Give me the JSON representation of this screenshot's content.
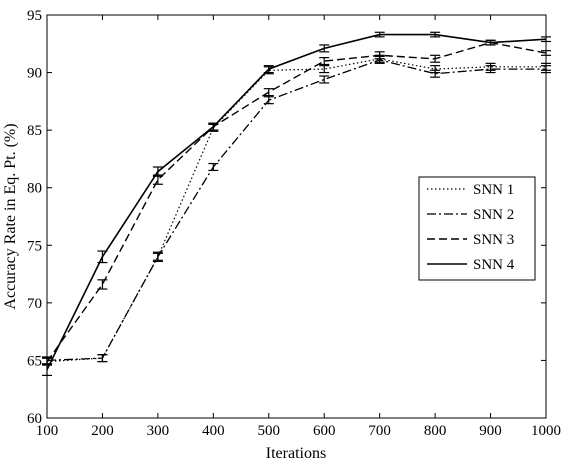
{
  "chart_data": {
    "type": "line",
    "xlabel": "Iterations",
    "ylabel": "Accuracy Rate in Eq. Pt. (%)",
    "xlim": [
      100,
      1000
    ],
    "ylim": [
      60,
      95
    ],
    "xticks": [
      100,
      200,
      300,
      400,
      500,
      600,
      700,
      800,
      900,
      1000
    ],
    "yticks": [
      60,
      65,
      70,
      75,
      80,
      85,
      90,
      95
    ],
    "grid": false,
    "legend_position": "center-right",
    "x": [
      100,
      200,
      300,
      400,
      500,
      600,
      700,
      800,
      900,
      1000
    ],
    "series": [
      {
        "name": "SNN 1",
        "style": "dotted",
        "values": [
          64.9,
          65.2,
          74.0,
          85.2,
          90.2,
          90.3,
          91.2,
          90.3,
          90.5,
          90.5
        ],
        "errors": [
          0.3,
          0.3,
          0.4,
          0.3,
          0.3,
          0.3,
          0.3,
          0.3,
          0.3,
          0.3
        ]
      },
      {
        "name": "SNN 2",
        "style": "dashdot",
        "values": [
          65.0,
          65.2,
          74.0,
          81.8,
          87.6,
          89.4,
          91.1,
          89.9,
          90.3,
          90.3
        ],
        "errors": [
          0.3,
          0.3,
          0.3,
          0.3,
          0.3,
          0.3,
          0.3,
          0.3,
          0.3,
          0.3
        ]
      },
      {
        "name": "SNN 3",
        "style": "dashed",
        "values": [
          64.9,
          71.6,
          80.7,
          85.3,
          88.3,
          91.0,
          91.5,
          91.2,
          92.6,
          91.7
        ],
        "errors": [
          0.3,
          0.4,
          0.4,
          0.3,
          0.3,
          0.3,
          0.3,
          0.3,
          0.2,
          0.2
        ]
      },
      {
        "name": "SNN 4",
        "style": "solid",
        "values": [
          64.2,
          74.0,
          81.4,
          85.3,
          90.3,
          92.1,
          93.3,
          93.3,
          92.6,
          92.9
        ],
        "errors": [
          0.5,
          0.5,
          0.4,
          0.3,
          0.3,
          0.3,
          0.2,
          0.2,
          0.2,
          0.2
        ]
      }
    ]
  }
}
